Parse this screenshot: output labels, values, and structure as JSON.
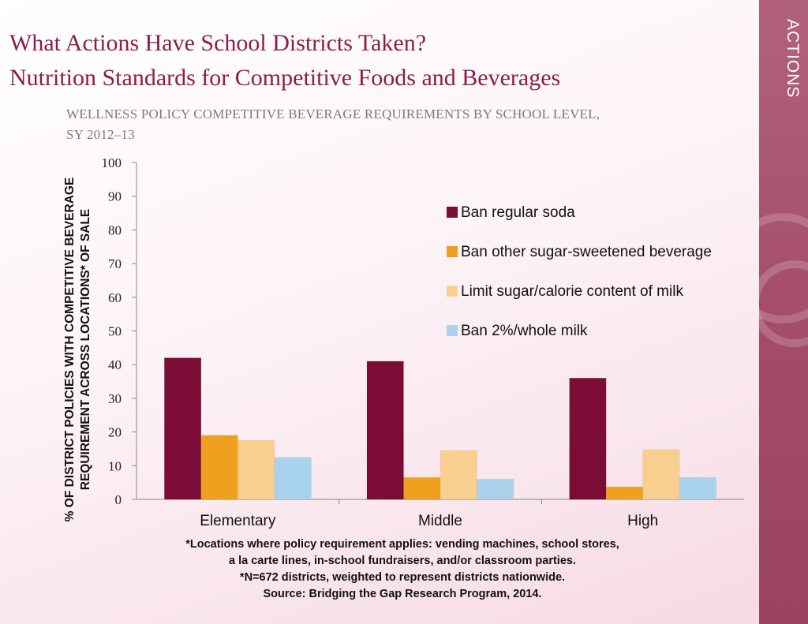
{
  "header": {
    "title_line1": "What Actions Have School Districts Taken?",
    "title_line2": "Nutrition Standards for Competitive Foods and Beverages"
  },
  "sidebar": {
    "label": "ACTIONS"
  },
  "subtitle": {
    "line1": "WELLNESS POLICY COMPETITIVE BEVERAGE REQUIREMENTS BY SCHOOL LEVEL,",
    "line2": "SY 2012–13"
  },
  "footnotes": [
    "*Locations where policy requirement applies: vending machines, school stores,",
    "a la carte lines, in-school fundraisers, and/or classroom parties.",
    "*N=672 districts, weighted to represent districts nationwide.",
    "Source: Bridging the Gap Research Program, 2014."
  ],
  "chart_data": {
    "type": "bar",
    "title": "WELLNESS POLICY COMPETITIVE BEVERAGE REQUIREMENTS BY SCHOOL LEVEL, SY 2012–13",
    "categories": [
      "Elementary",
      "Middle",
      "High"
    ],
    "series": [
      {
        "name": "Ban regular soda",
        "color": "#7b0c35",
        "values": [
          42,
          41,
          36
        ]
      },
      {
        "name": "Ban other sugar-sweetened beverage",
        "color": "#f0a01e",
        "values": [
          19,
          6.5,
          3.7
        ]
      },
      {
        "name": "Limit sugar/calorie content of milk",
        "color": "#f9cf90",
        "values": [
          17.5,
          14.5,
          14.8
        ]
      },
      {
        "name": "Ban 2%/whole milk",
        "color": "#a9d3ec",
        "values": [
          12.5,
          6,
          6.5
        ]
      }
    ],
    "ylabel_line1": "% OF DISTRICT POLICIES WITH COMPETITIVE BEVERAGE",
    "ylabel_line2": "REQUIREMENT ACROSS LOCATIONS* OF SALE",
    "xlabel": "",
    "ylim": [
      0,
      100
    ],
    "yticks": [
      0,
      10,
      20,
      30,
      40,
      50,
      60,
      70,
      80,
      90,
      100
    ],
    "grid": false,
    "legend_position": "right"
  }
}
